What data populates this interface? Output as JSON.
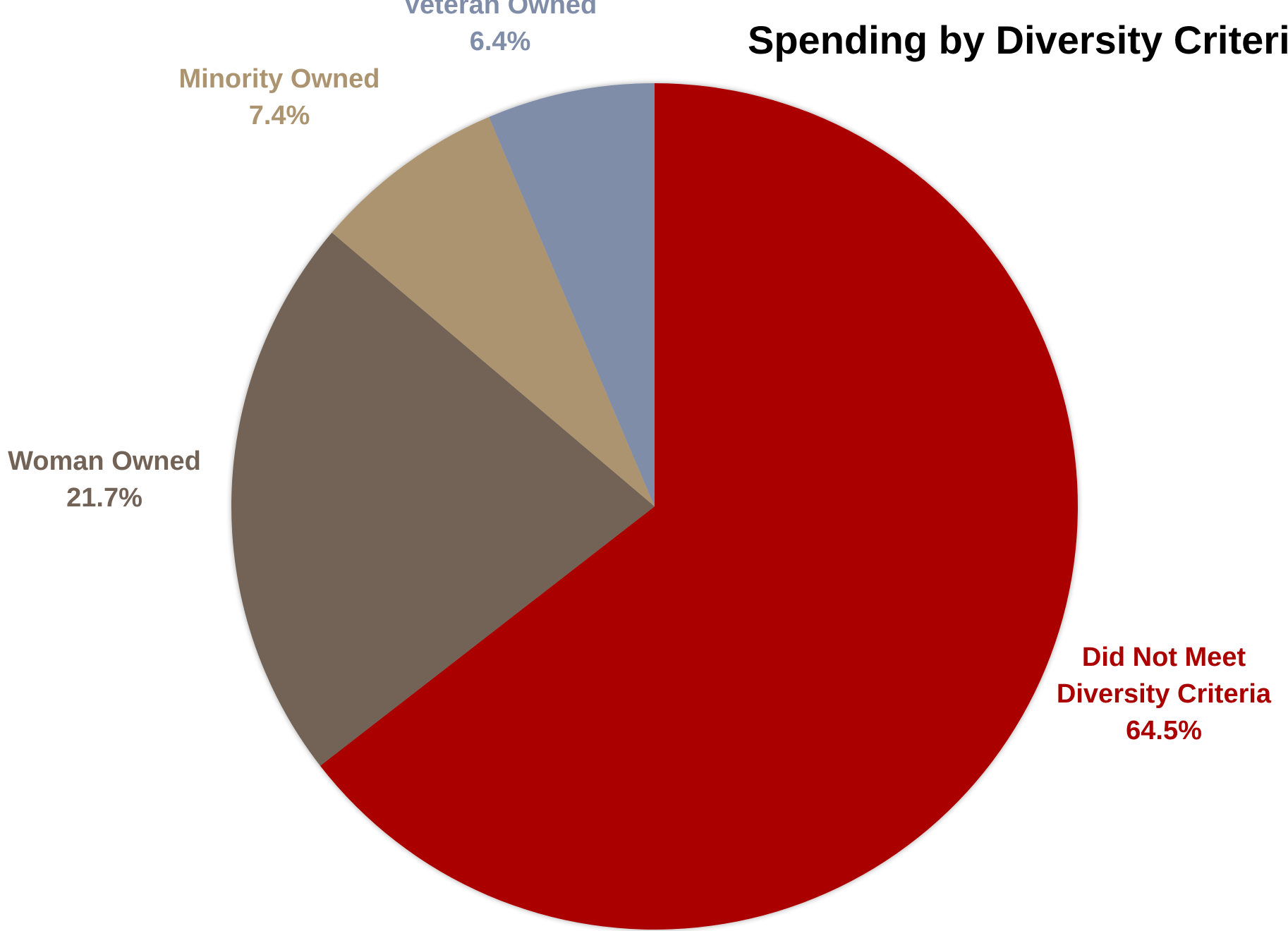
{
  "chart_data": {
    "type": "pie",
    "title": "Spending by Diversity Criteria",
    "start_angle_deg": 0,
    "direction": "clockwise",
    "slices": [
      {
        "label_lines": [
          "Did Not Meet",
          "Diversity Criteria"
        ],
        "value_label": "64.5%",
        "value": 64.5,
        "color": "#AA0000",
        "label_color": "#AA0000"
      },
      {
        "label_lines": [
          "Woman Owned"
        ],
        "value_label": "21.7%",
        "value": 21.7,
        "color": "#736357",
        "label_color": "#736357"
      },
      {
        "label_lines": [
          "Minority Owned"
        ],
        "value_label": "7.4%",
        "value": 7.4,
        "color": "#AC9470",
        "label_color": "#AC9470"
      },
      {
        "label_lines": [
          "Veteran Owned"
        ],
        "value_label": "6.4%",
        "value": 6.4,
        "color": "#808DA9",
        "label_color": "#808DA9"
      }
    ]
  }
}
